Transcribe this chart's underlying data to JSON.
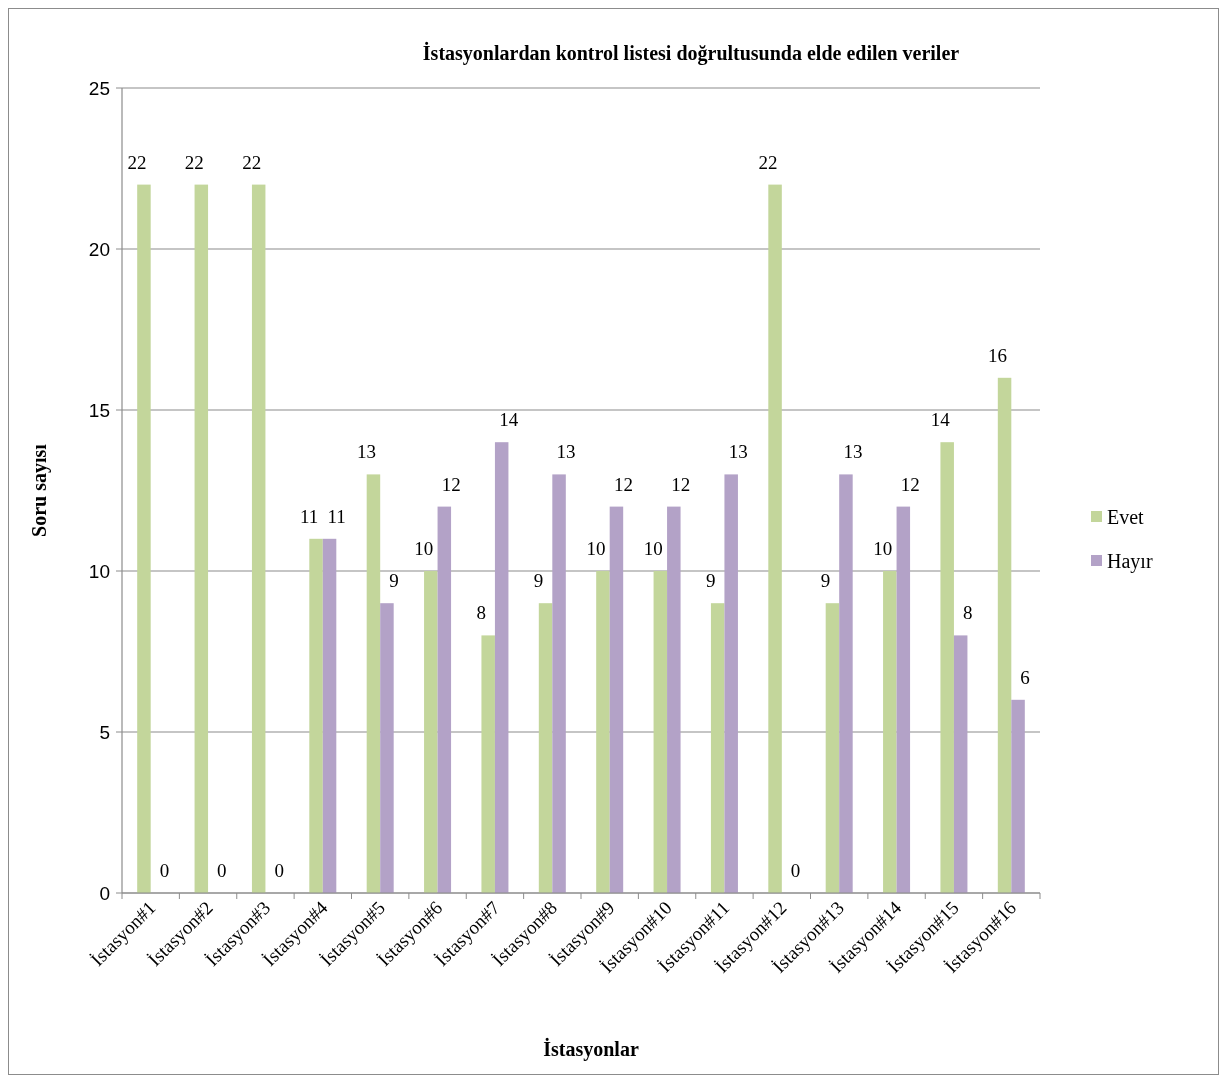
{
  "chart_data": {
    "type": "bar",
    "title": "İstasyonlardan kontrol listesi doğrultusunda elde edilen veriler",
    "xlabel": "İstasyonlar",
    "ylabel": "Soru sayısı",
    "categories": [
      "İstasyon#1",
      "İstasyon#2",
      "İstasyon#3",
      "İstasyon#4",
      "İstasyon#5",
      "İstasyon#6",
      "İstasyon#7",
      "İstasyon#8",
      "İstasyon#9",
      "İstasyon#10",
      "İstasyon#11",
      "İstasyon#12",
      "İstasyon#13",
      "İstasyon#14",
      "İstasyon#15",
      "İstasyon#16"
    ],
    "series": [
      {
        "name": "Evet",
        "color": "#c3d69b",
        "values": [
          22,
          22,
          22,
          11,
          13,
          10,
          8,
          9,
          10,
          10,
          9,
          22,
          9,
          10,
          14,
          16
        ]
      },
      {
        "name": "Hayır",
        "color": "#b3a2c7",
        "values": [
          0,
          0,
          0,
          11,
          9,
          12,
          14,
          13,
          12,
          12,
          13,
          0,
          13,
          12,
          8,
          6
        ]
      }
    ],
    "ylim": [
      0,
      25
    ],
    "yticks": [
      0,
      5,
      10,
      15,
      20,
      25
    ],
    "grid": "y",
    "legend": "right",
    "data_labels": true
  }
}
